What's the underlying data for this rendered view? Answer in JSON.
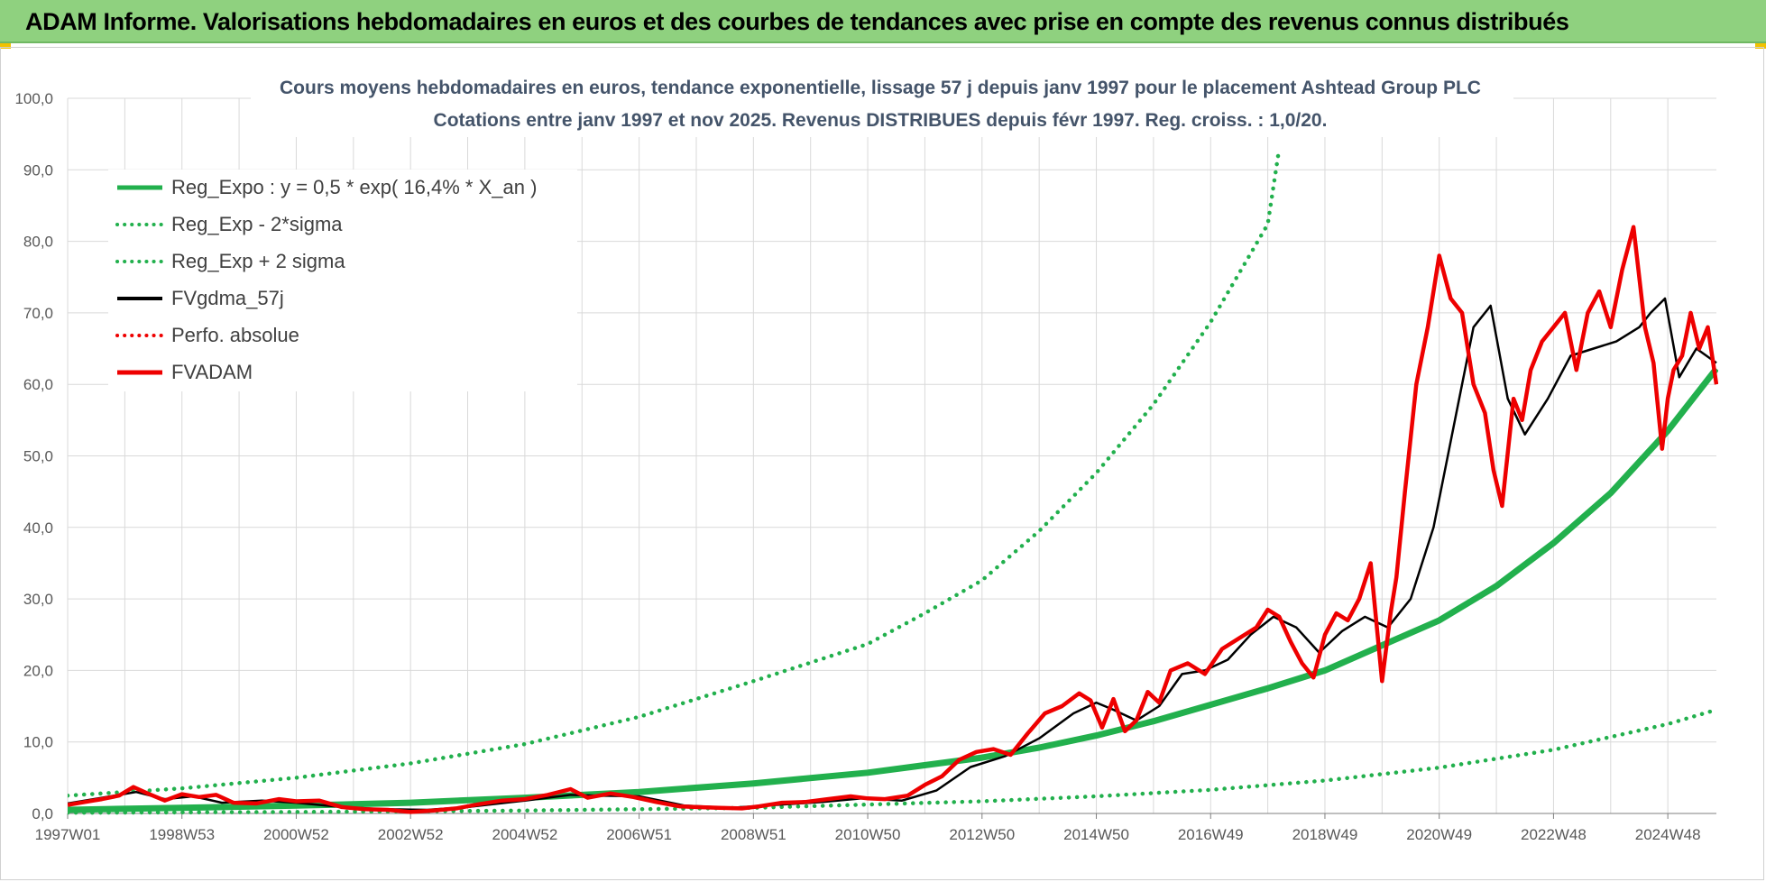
{
  "header": {
    "title": "ADAM Informe. Valorisations hebdomadaires en euros et des courbes de tendances avec prise en compte des revenus connus distribués"
  },
  "colors": {
    "banner": "#8fd17f",
    "reg_green": "#22b04d",
    "fv_red": "#ee0000",
    "gdma_black": "#000000",
    "grid": "#d9d9d9"
  },
  "chart_data": {
    "type": "line",
    "title_line1": "Cours moyens hebdomadaires en euros, tendance exponentielle, lissage 57 j depuis janv 1997 pour le placement Ashtead Group PLC",
    "title_line2": "Cotations entre janv 1997 et nov 2025. Revenus DISTRIBUES depuis févr 1997. Reg. croiss. : 1,0/20.",
    "xlabel": "",
    "ylabel": "",
    "ylim": [
      0,
      100
    ],
    "xlim": [
      1997.0,
      2025.85
    ],
    "y_ticks": [
      "0,0",
      "10,0",
      "20,0",
      "30,0",
      "40,0",
      "50,0",
      "60,0",
      "70,0",
      "80,0",
      "90,0",
      "100,0"
    ],
    "x_ticks": [
      {
        "label": "1997W01",
        "x": 1997.0
      },
      {
        "label": "1998W53",
        "x": 1999.0
      },
      {
        "label": "2000W52",
        "x": 2001.0
      },
      {
        "label": "2002W52",
        "x": 2003.0
      },
      {
        "label": "2004W52",
        "x": 2005.0
      },
      {
        "label": "2006W51",
        "x": 2007.0
      },
      {
        "label": "2008W51",
        "x": 2009.0
      },
      {
        "label": "2010W50",
        "x": 2011.0
      },
      {
        "label": "2012W50",
        "x": 2013.0
      },
      {
        "label": "2014W50",
        "x": 2015.0
      },
      {
        "label": "2016W49",
        "x": 2017.0
      },
      {
        "label": "2018W49",
        "x": 2019.0
      },
      {
        "label": "2020W49",
        "x": 2021.0
      },
      {
        "label": "2022W48",
        "x": 2023.0
      },
      {
        "label": "2024W48",
        "x": 2025.0
      }
    ],
    "grid": true,
    "legend_position": "top-left",
    "series": [
      {
        "name": "Reg_Expo : y = 0,5 * exp( 16,4% *  X_an )",
        "style": "solid",
        "color": "#22b04d",
        "x": [
          1997.0,
          1999.0,
          2001.0,
          2003.0,
          2005.0,
          2007.0,
          2009.0,
          2011.0,
          2013.0,
          2014.0,
          2015.0,
          2016.0,
          2017.0,
          2018.0,
          2019.0,
          2020.0,
          2021.0,
          2022.0,
          2023.0,
          2024.0,
          2025.0,
          2025.85
        ],
        "y": [
          0.5,
          0.8,
          1.1,
          1.5,
          2.2,
          3.0,
          4.2,
          5.7,
          7.8,
          9.2,
          10.9,
          12.9,
          15.2,
          17.5,
          20.0,
          23.5,
          27.0,
          31.8,
          37.8,
          44.8,
          53.5,
          62.2
        ]
      },
      {
        "name": "Reg_Exp - 2*sigma",
        "style": "dotted",
        "color": "#22b04d",
        "x": [
          1997.0,
          2001.0,
          2005.0,
          2009.0,
          2013.0,
          2015.0,
          2017.0,
          2019.0,
          2021.0,
          2023.0,
          2025.0,
          2025.85
        ],
        "y": [
          0.1,
          0.2,
          0.4,
          0.8,
          1.7,
          2.4,
          3.3,
          4.6,
          6.4,
          8.9,
          12.5,
          14.5
        ]
      },
      {
        "name": "Reg_Exp + 2 sigma",
        "style": "dotted",
        "color": "#22b04d",
        "x": [
          1997.0,
          1999.0,
          2001.0,
          2003.0,
          2005.0,
          2007.0,
          2009.0,
          2011.0,
          2012.0,
          2013.0,
          2014.0,
          2015.0,
          2016.0,
          2017.0,
          2018.0,
          2018.2
        ],
        "y": [
          2.5,
          3.5,
          5.0,
          7.0,
          9.7,
          13.5,
          18.5,
          23.7,
          28.0,
          32.6,
          39.5,
          47.6,
          57.2,
          68.7,
          82.4,
          93.0
        ]
      },
      {
        "name": "FVgdma_57j",
        "style": "solid",
        "color": "#000000",
        "x": [
          1997.0,
          1997.6,
          1998.2,
          1998.7,
          1999.2,
          1999.7,
          2000.4,
          2001.0,
          2001.8,
          2002.5,
          2003.3,
          2004.0,
          2005.0,
          2005.8,
          2006.3,
          2007.0,
          2007.8,
          2008.6,
          2009.4,
          2010.2,
          2010.9,
          2011.6,
          2012.2,
          2012.8,
          2013.4,
          2014.0,
          2014.6,
          2015.0,
          2015.3,
          2015.7,
          2016.1,
          2016.5,
          2016.9,
          2017.3,
          2017.7,
          2018.1,
          2018.5,
          2018.9,
          2019.3,
          2019.7,
          2020.1,
          2020.5,
          2020.9,
          2021.3,
          2021.6,
          2021.9,
          2022.2,
          2022.5,
          2022.9,
          2023.3,
          2023.7,
          2024.1,
          2024.5,
          2024.7,
          2024.95,
          2025.2,
          2025.5,
          2025.85
        ],
        "y": [
          1.4,
          2.2,
          3.0,
          2.0,
          2.4,
          1.5,
          1.8,
          1.5,
          0.9,
          0.6,
          0.5,
          0.9,
          1.8,
          2.6,
          2.5,
          2.4,
          1.1,
          0.8,
          1.2,
          1.6,
          2.1,
          1.8,
          3.2,
          6.5,
          8.0,
          10.5,
          14.0,
          15.5,
          14.5,
          13.0,
          15.0,
          19.5,
          20.0,
          21.5,
          25.0,
          27.5,
          26.0,
          22.5,
          25.5,
          27.5,
          26.0,
          30.0,
          40.0,
          56.0,
          68.0,
          71.0,
          58.0,
          53.0,
          58.0,
          64.0,
          65.0,
          66.0,
          68.0,
          70.0,
          72.0,
          61.0,
          65.0,
          63.0
        ]
      },
      {
        "name": "Perfo. absolue",
        "style": "dotted",
        "color": "#ee0000",
        "x": [],
        "y": []
      },
      {
        "name": "FVADAM",
        "style": "solid",
        "color": "#ee0000",
        "x": [
          1997.0,
          1997.3,
          1997.6,
          1997.9,
          1998.15,
          1998.4,
          1998.7,
          1999.0,
          1999.3,
          1999.6,
          1999.9,
          2000.3,
          2000.7,
          2001.0,
          2001.4,
          2001.8,
          2002.2,
          2002.6,
          2003.0,
          2003.4,
          2003.8,
          2004.2,
          2004.6,
          2005.0,
          2005.4,
          2005.8,
          2006.1,
          2006.5,
          2006.9,
          2007.3,
          2007.7,
          2008.0,
          2008.4,
          2008.8,
          2009.1,
          2009.5,
          2009.9,
          2010.3,
          2010.7,
          2011.0,
          2011.3,
          2011.7,
          2012.0,
          2012.3,
          2012.6,
          2012.9,
          2013.2,
          2013.5,
          2013.8,
          2014.1,
          2014.4,
          2014.7,
          2014.9,
          2015.1,
          2015.3,
          2015.5,
          2015.7,
          2015.9,
          2016.1,
          2016.3,
          2016.6,
          2016.9,
          2017.2,
          2017.5,
          2017.8,
          2018.0,
          2018.2,
          2018.4,
          2018.6,
          2018.8,
          2019.0,
          2019.2,
          2019.4,
          2019.6,
          2019.8,
          2020.0,
          2020.15,
          2020.25,
          2020.4,
          2020.6,
          2020.8,
          2021.0,
          2021.2,
          2021.4,
          2021.6,
          2021.8,
          2021.95,
          2022.1,
          2022.3,
          2022.45,
          2022.6,
          2022.8,
          2023.0,
          2023.2,
          2023.4,
          2023.6,
          2023.8,
          2024.0,
          2024.2,
          2024.4,
          2024.6,
          2024.75,
          2024.9,
          2025.0,
          2025.1,
          2025.25,
          2025.4,
          2025.55,
          2025.7,
          2025.85
        ],
        "y": [
          1.2,
          1.6,
          2.0,
          2.5,
          3.7,
          2.8,
          1.8,
          2.7,
          2.3,
          2.6,
          1.5,
          1.4,
          2.0,
          1.7,
          1.8,
          0.9,
          0.6,
          0.5,
          0.2,
          0.4,
          0.7,
          1.3,
          1.8,
          2.0,
          2.6,
          3.4,
          2.2,
          2.8,
          2.3,
          1.6,
          1.0,
          0.9,
          0.8,
          0.7,
          1.0,
          1.5,
          1.6,
          2.0,
          2.4,
          2.1,
          2.0,
          2.5,
          4.0,
          5.2,
          7.5,
          8.6,
          9.0,
          8.2,
          11.2,
          14.0,
          15.0,
          16.8,
          15.8,
          12.0,
          16.0,
          11.5,
          13.0,
          17.0,
          15.5,
          20.0,
          21.0,
          19.5,
          23.0,
          24.5,
          26.0,
          28.5,
          27.5,
          24.0,
          21.0,
          19.0,
          25.0,
          28.0,
          27.0,
          30.0,
          35.0,
          18.5,
          28.0,
          33.0,
          45.0,
          60.0,
          68.0,
          78.0,
          72.0,
          70.0,
          60.0,
          56.0,
          48.0,
          43.0,
          58.0,
          55.0,
          62.0,
          66.0,
          68.0,
          70.0,
          62.0,
          70.0,
          73.0,
          68.0,
          76.0,
          82.0,
          68.0,
          63.0,
          51.0,
          58.0,
          62.0,
          64.0,
          70.0,
          65.0,
          68.0,
          60.0
        ]
      }
    ]
  }
}
